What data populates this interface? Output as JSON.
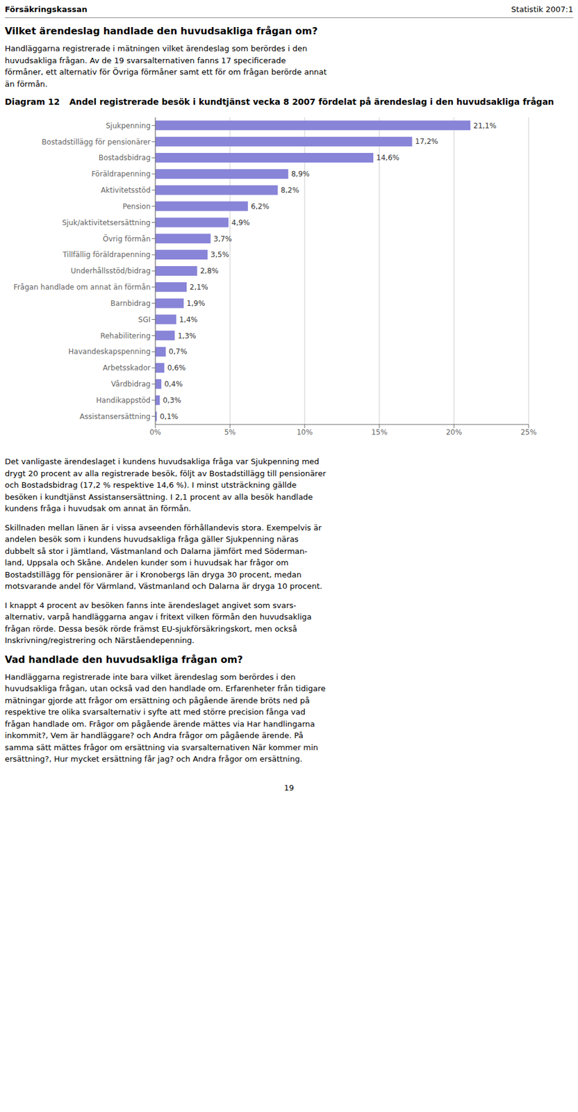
{
  "chart_data": {
    "type": "bar",
    "orientation": "horizontal",
    "title": "Diagram 12",
    "subtitle": "Andel registrerade besök i kundtjänst vecka 8 2007 fördelat på ärendeslag i den huvudsakliga frågan",
    "categories": [
      "Sjukpenning",
      "Bostadstillägg för pensionärer",
      "Bostadsbidrag",
      "Föräldrapenning",
      "Aktivitetsstöd",
      "Pension",
      "Sjuk/aktivitetsersättning",
      "Övrig förmån",
      "Tillfällig föräldrapenning",
      "Underhållsstöd/bidrag",
      "Frågan handlade om annat än förmån",
      "Barnbidrag",
      "SGI",
      "Rehabilitering",
      "Havandeskapspenning",
      "Arbetsskador",
      "Vårdbidrag",
      "Handikappstöd",
      "Assistansersättning"
    ],
    "values": [
      21.1,
      17.2,
      14.6,
      8.9,
      8.2,
      6.2,
      4.9,
      3.7,
      3.5,
      2.8,
      2.1,
      1.9,
      1.4,
      1.3,
      0.7,
      0.6,
      0.4,
      0.3,
      0.1
    ],
    "value_labels": [
      "21,1%",
      "17,2%",
      "14,6%",
      "8,9%",
      "8,2%",
      "6,2%",
      "4,9%",
      "3,7%",
      "3,5%",
      "2,8%",
      "2,1%",
      "1,9%",
      "1,4%",
      "1,3%",
      "0,7%",
      "0,6%",
      "0,4%",
      "0,3%",
      "0,1%"
    ],
    "data_labels": true,
    "color": "#8884d8",
    "xlim": [
      0,
      25
    ],
    "xticks": [
      {
        "value": 0,
        "label": "0%"
      },
      {
        "value": 5,
        "label": "5%"
      },
      {
        "value": 10,
        "label": "10%"
      },
      {
        "value": 15,
        "label": "15%"
      },
      {
        "value": 20,
        "label": "20%"
      },
      {
        "value": 25,
        "label": "25%"
      }
    ],
    "grid": true,
    "annotations": [
      "Försäkringskassan",
      "Statistik 2007:1",
      "Vilket ärendeslag handlade den huvudsakliga frågan om?",
      "Handläggarna registrerade i mätningen vilket ärendeslag som berördes i den\nhuvudsakliga frågan. Av de 19 svarsalternativen fanns 17 specificerade\nförmåner, ett alternativ för Övriga förmåner samt ett för om frågan berörde annat\nän förmån.",
      "Det vanligaste ärendeslaget i kundens huvudsakliga fråga var Sjukpenning med\ndrygt 20 procent av alla registrerade besök, följt av Bostadstillägg till pensionärer\noch Bostadsbidrag (17,2 % respektive 14,6 %). I minst utsträckning gällde\nbesöken i kundtjänst Assistansersättning. I 2,1 procent av alla besök handlade\nkundens fråga i huvudsak om annat än förmån.",
      "Skillnaden mellan länen är i vissa avseenden förhållandevis stora. Exempelvis är\nandelen besök som i kundens huvudsakliga fråga gäller Sjukpenning näras\ndubbelt så stor i Jämtland, Västmanland och Dalarna jämfört med Söderman-\nland, Uppsala och Skåne. Andelen kunder som i huvudsak har frågor om\nBostadstillägg för pensionärer är i Kronobergs län dryga 30 procent, medan\nmotsvarande andel för Värmland, Västmanland och Dalarna är dryga 10 procent.",
      "I knappt 4 procent av besöken fanns inte ärendeslaget angivet som svars-\nalternativ, varpå handläggarna angav i fritext vilken förmån den huvudsakliga\nfrågan rörde. Dessa besök rörde främst EU-sjukförsäkringskort, men också\nInskrivning/registrering och Närståendepenning.",
      "Vad handlade den huvudsakliga frågan om?",
      "Handläggarna registrerade inte bara vilket ärendeslag som berördes i den\nhuvudsakliga frågan, utan också vad den handlade om. Erfarenheter från tidigare\nmätningar gjorde att frågor om ersättning och pågående ärende bröts ned på\nrespektive tre olika svarsalternativ i syfte att med större precision fånga vad\nfrågan handlade om. Frågor om pågående ärende mättes via Har handlingarna\ninkommit?, Vem är handläggare? och Andra frågor om pågående ärende. På\nsamma sätt mättes frågor om ersättning via svarsalternativen När kommer min\nersättning?, Hur mycket ersättning får jag? och Andra frågor om ersättning.",
      "19"
    ]
  }
}
